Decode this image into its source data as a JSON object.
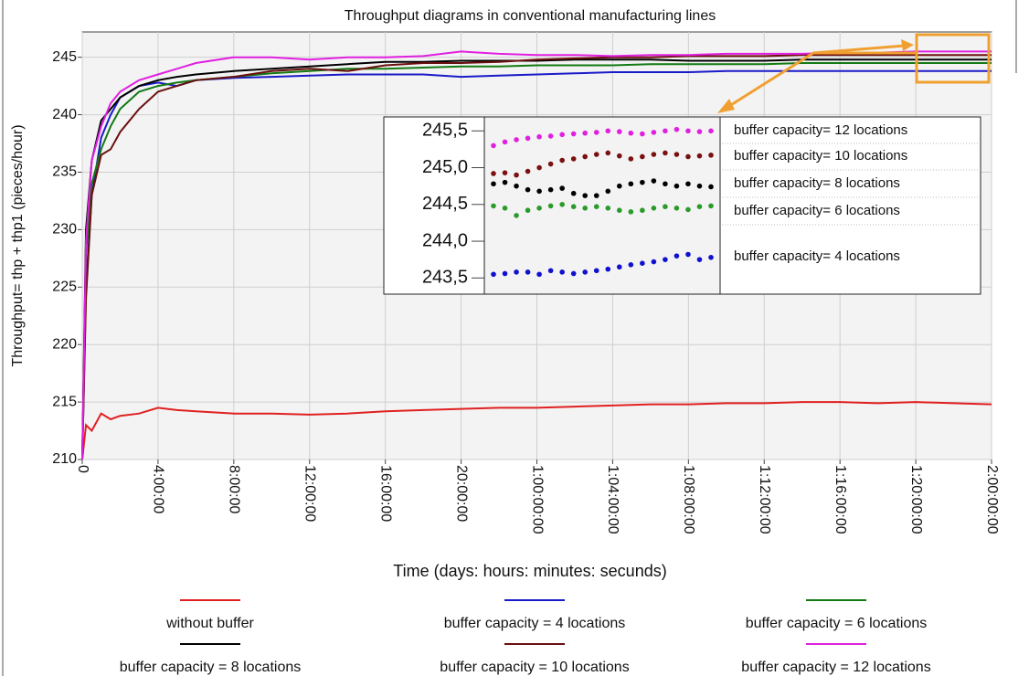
{
  "chart_data": [
    {
      "type": "line",
      "title": "Throughput diagrams in conventional manufacturing lines",
      "x_label": "Time (days: hours: minutes: secunds)",
      "y_label": "Throughput= thp + thp1 (pieces/hour)",
      "x": [
        0,
        0.2,
        0.5,
        1,
        1.5,
        2,
        3,
        4,
        5,
        6,
        8,
        10,
        12,
        14,
        16,
        18,
        20,
        22,
        24,
        26,
        28,
        30,
        32,
        34,
        36,
        38,
        40,
        42,
        44,
        46,
        48
      ],
      "xlim": [
        0,
        48
      ],
      "xticks": [
        0,
        {
          "value": 4,
          "label": "4:00:00"
        },
        {
          "value": 8,
          "label": "8:00:00"
        },
        {
          "value": 12,
          "label": "12:00:00"
        },
        {
          "value": 16,
          "label": "16:00:00"
        },
        {
          "value": 20,
          "label": "20:00:00"
        },
        {
          "value": 24,
          "label": "1:00:00:00"
        },
        {
          "value": 28,
          "label": "1:04:00:00"
        },
        {
          "value": 32,
          "label": "1:08:00:00"
        },
        {
          "value": 36,
          "label": "1:12:00:00"
        },
        {
          "value": 40,
          "label": "1:16:00:00"
        },
        {
          "value": 44,
          "label": "1:20:00:00"
        },
        {
          "value": 48,
          "label": "2:00:00:00"
        }
      ],
      "ylim": [
        210,
        247.2
      ],
      "yticks": [
        210,
        215,
        220,
        225,
        230,
        235,
        240,
        245
      ],
      "grid": true,
      "legend": "bottom",
      "series": [
        {
          "name": "without buffer",
          "color": "#e02020",
          "values": [
            210,
            213,
            212.5,
            214,
            213.5,
            213.8,
            214,
            214.5,
            214.3,
            214.2,
            214,
            214,
            213.9,
            214,
            214.2,
            214.3,
            214.4,
            214.5,
            214.5,
            214.6,
            214.7,
            214.8,
            214.8,
            214.9,
            214.9,
            215,
            215,
            214.9,
            215,
            214.9,
            214.8
          ]
        },
        {
          "name": "buffer capacity = 4 locations",
          "color": "#1a1ac8",
          "values": [
            210,
            225,
            233,
            238,
            240,
            241.5,
            242.5,
            242.8,
            242.5,
            243,
            243.2,
            243.3,
            243.4,
            243.5,
            243.5,
            243.5,
            243.3,
            243.4,
            243.5,
            243.6,
            243.7,
            243.7,
            243.7,
            243.8,
            243.8,
            243.8,
            243.8,
            243.8,
            243.8,
            243.8,
            243.8
          ]
        },
        {
          "name": "buffer capacity = 6 locations",
          "color": "#137a13",
          "values": [
            210,
            228,
            234,
            237,
            239,
            240.5,
            242,
            242.5,
            242.8,
            243,
            243.3,
            243.6,
            243.8,
            244,
            244,
            244.1,
            244.2,
            244.2,
            244.3,
            244.3,
            244.3,
            244.4,
            244.4,
            244.4,
            244.4,
            244.5,
            244.5,
            244.5,
            244.5,
            244.5,
            244.5
          ]
        },
        {
          "name": "buffer capacity = 8 locations",
          "color": "#000000",
          "values": [
            210,
            230,
            236,
            239.5,
            240.5,
            241.5,
            242.5,
            243,
            243.3,
            243.5,
            243.8,
            244,
            244.2,
            244.4,
            244.6,
            244.6,
            244.7,
            244.7,
            244.7,
            244.8,
            244.8,
            244.8,
            244.7,
            244.7,
            244.7,
            244.8,
            244.8,
            244.8,
            244.8,
            244.8,
            244.8
          ]
        },
        {
          "name": "buffer capacity = 10 locations",
          "color": "#6b0f0f",
          "values": [
            210,
            224,
            233,
            236.5,
            237,
            238.5,
            240.5,
            242,
            242.5,
            243,
            243.3,
            243.8,
            244,
            243.8,
            244.3,
            244.5,
            244.5,
            244.6,
            244.8,
            244.9,
            245,
            245,
            245.1,
            245.1,
            245.1,
            245.2,
            245.2,
            245.2,
            245.2,
            245.2,
            245.2
          ]
        },
        {
          "name": "buffer capacity = 12 locations",
          "color": "#e020e0",
          "values": [
            210,
            229,
            236,
            239,
            241,
            242,
            243,
            243.5,
            244,
            244.5,
            245,
            245,
            244.8,
            245,
            245,
            245.1,
            245.5,
            245.3,
            245.2,
            245.2,
            245.1,
            245.2,
            245.2,
            245.3,
            245.3,
            245.3,
            245.4,
            245.4,
            245.5,
            245.5,
            245.5
          ]
        }
      ]
    },
    {
      "type": "scatter",
      "ylim": [
        243.28,
        245.69
      ],
      "yticks": [
        {
          "value": 245.5,
          "label": "245,5"
        },
        {
          "value": 245.0,
          "label": "245,0"
        },
        {
          "value": 244.5,
          "label": "244,5"
        },
        {
          "value": 244.0,
          "label": "244,0"
        },
        {
          "value": 243.5,
          "label": "243,5"
        }
      ],
      "legend": "right",
      "series": [
        {
          "name": "buffer capacity= 12 locations",
          "color": "#e020e0",
          "values": [
            245.3,
            245.35,
            245.38,
            245.4,
            245.42,
            245.43,
            245.45,
            245.46,
            245.47,
            245.48,
            245.5,
            245.49,
            245.47,
            245.46,
            245.48,
            245.5,
            245.52,
            245.5,
            245.49,
            245.5
          ]
        },
        {
          "name": "buffer capacity= 10 locations",
          "color": "#7a1010",
          "values": [
            244.92,
            244.93,
            244.9,
            244.95,
            245.0,
            245.05,
            245.1,
            245.12,
            245.15,
            245.18,
            245.2,
            245.16,
            245.12,
            245.15,
            245.18,
            245.2,
            245.18,
            245.15,
            245.16,
            245.17
          ]
        },
        {
          "name": "buffer capacity= 8 locations",
          "color": "#000000",
          "values": [
            244.78,
            244.8,
            244.75,
            244.7,
            244.68,
            244.7,
            244.72,
            244.65,
            244.62,
            244.62,
            244.68,
            244.75,
            244.78,
            244.8,
            244.82,
            244.78,
            244.75,
            244.78,
            244.75,
            244.74
          ]
        },
        {
          "name": "buffer capacity= 6 locations",
          "color": "#2a9a2a",
          "values": [
            244.48,
            244.45,
            244.35,
            244.42,
            244.45,
            244.48,
            244.5,
            244.47,
            244.45,
            244.47,
            244.45,
            244.42,
            244.4,
            244.42,
            244.45,
            244.47,
            244.45,
            244.43,
            244.47,
            244.48
          ]
        },
        {
          "name": "buffer capacity= 4 locations",
          "color": "#1010d0",
          "values": [
            243.55,
            243.56,
            243.58,
            243.58,
            243.55,
            243.6,
            243.58,
            243.56,
            243.58,
            243.6,
            243.62,
            243.65,
            243.68,
            243.7,
            243.72,
            243.75,
            243.8,
            243.82,
            243.75,
            243.78
          ]
        }
      ]
    }
  ]
}
